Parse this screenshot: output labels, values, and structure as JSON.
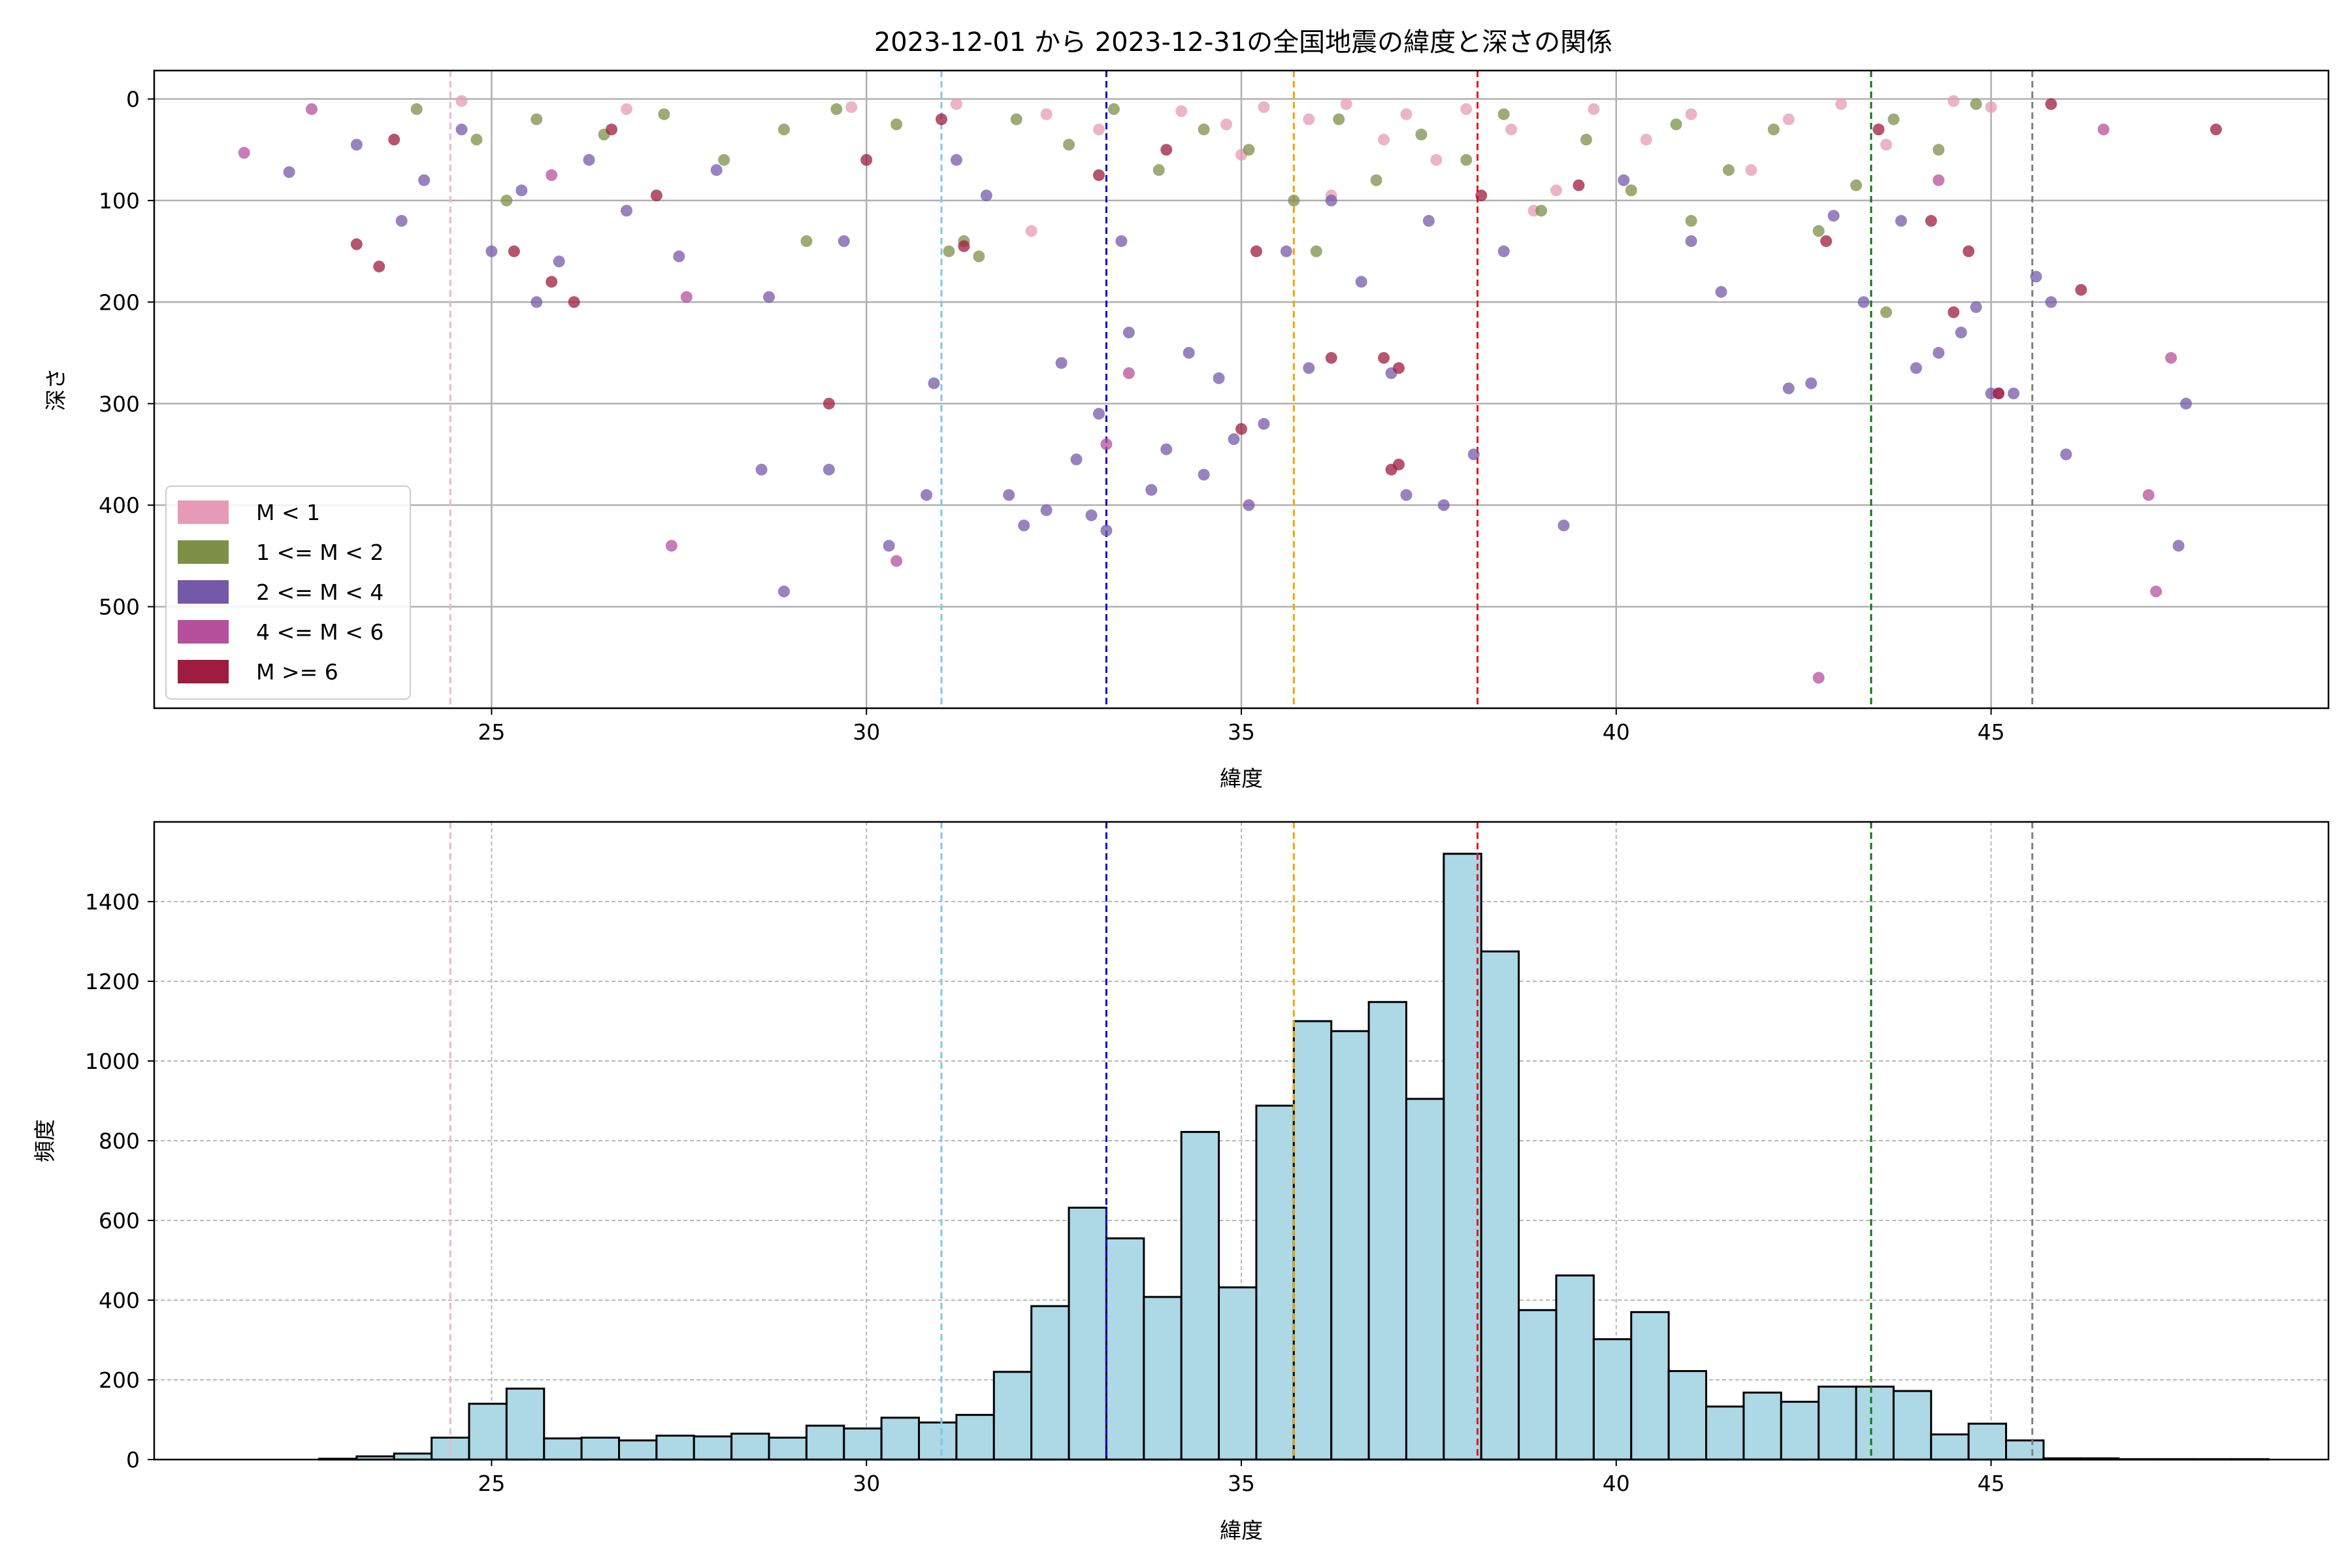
{
  "chart_data": [
    {
      "type": "scatter",
      "title": "2023-12-01 から 2023-12-31の全国地震の緯度と深さの関係",
      "xlabel": "緯度",
      "ylabel": "深さ",
      "xlim": [
        20.5,
        49.5
      ],
      "ylim": [
        600,
        -28
      ],
      "y_inverted": true,
      "xticks": [
        25,
        30,
        35,
        40,
        45
      ],
      "yticks": [
        0,
        100,
        200,
        300,
        400,
        500
      ],
      "grid": true,
      "legend_position": "lower-left",
      "series": [
        {
          "name": "M < 1",
          "color": "#e59bb7",
          "points": [
            [
              24.6,
              2
            ],
            [
              26.8,
              10
            ],
            [
              29.8,
              8
            ],
            [
              31.2,
              5
            ],
            [
              32.4,
              15
            ],
            [
              33.1,
              30
            ],
            [
              34.2,
              12
            ],
            [
              34.8,
              25
            ],
            [
              35.3,
              8
            ],
            [
              35.9,
              20
            ],
            [
              36.4,
              5
            ],
            [
              36.9,
              40
            ],
            [
              37.2,
              15
            ],
            [
              37.6,
              60
            ],
            [
              38.0,
              10
            ],
            [
              38.6,
              30
            ],
            [
              39.2,
              90
            ],
            [
              39.7,
              10
            ],
            [
              40.4,
              40
            ],
            [
              41.0,
              15
            ],
            [
              41.8,
              70
            ],
            [
              42.3,
              20
            ],
            [
              43.0,
              5
            ],
            [
              43.6,
              45
            ],
            [
              44.5,
              2
            ],
            [
              45.0,
              8
            ],
            [
              32.2,
              130
            ],
            [
              38.9,
              110
            ],
            [
              36.2,
              95
            ],
            [
              35.0,
              55
            ]
          ]
        },
        {
          "name": "1 <= M < 2",
          "color": "#7e8f48",
          "points": [
            [
              24.0,
              10
            ],
            [
              24.8,
              40
            ],
            [
              25.6,
              20
            ],
            [
              26.5,
              35
            ],
            [
              27.3,
              15
            ],
            [
              28.1,
              60
            ],
            [
              28.9,
              30
            ],
            [
              29.6,
              10
            ],
            [
              30.4,
              25
            ],
            [
              31.1,
              150
            ],
            [
              31.3,
              140
            ],
            [
              31.5,
              155
            ],
            [
              32.0,
              20
            ],
            [
              32.7,
              45
            ],
            [
              33.3,
              10
            ],
            [
              33.9,
              70
            ],
            [
              34.5,
              30
            ],
            [
              35.1,
              50
            ],
            [
              35.7,
              100
            ],
            [
              36.3,
              20
            ],
            [
              36.8,
              80
            ],
            [
              37.4,
              35
            ],
            [
              38.0,
              60
            ],
            [
              38.5,
              15
            ],
            [
              39.0,
              110
            ],
            [
              39.6,
              40
            ],
            [
              40.2,
              90
            ],
            [
              40.8,
              25
            ],
            [
              41.5,
              70
            ],
            [
              42.1,
              30
            ],
            [
              42.7,
              130
            ],
            [
              43.2,
              85
            ],
            [
              43.7,
              20
            ],
            [
              44.3,
              50
            ],
            [
              44.8,
              5
            ],
            [
              25.2,
              100
            ],
            [
              29.2,
              140
            ],
            [
              36.0,
              150
            ],
            [
              41.0,
              120
            ],
            [
              43.6,
              210
            ]
          ]
        },
        {
          "name": "2 <= M < 4",
          "color": "#7559a9",
          "points": [
            [
              22.3,
              72
            ],
            [
              23.2,
              45
            ],
            [
              23.8,
              120
            ],
            [
              24.1,
              80
            ],
            [
              24.6,
              30
            ],
            [
              25.0,
              150
            ],
            [
              25.4,
              90
            ],
            [
              25.6,
              200
            ],
            [
              25.9,
              160
            ],
            [
              26.3,
              60
            ],
            [
              26.8,
              110
            ],
            [
              27.5,
              155
            ],
            [
              28.0,
              70
            ],
            [
              28.6,
              365
            ],
            [
              28.7,
              195
            ],
            [
              28.9,
              485
            ],
            [
              29.5,
              365
            ],
            [
              29.7,
              140
            ],
            [
              30.3,
              440
            ],
            [
              30.8,
              390
            ],
            [
              30.9,
              280
            ],
            [
              31.2,
              60
            ],
            [
              31.6,
              95
            ],
            [
              31.9,
              390
            ],
            [
              32.1,
              420
            ],
            [
              32.4,
              405
            ],
            [
              32.6,
              260
            ],
            [
              32.8,
              355
            ],
            [
              33.0,
              410
            ],
            [
              33.2,
              425
            ],
            [
              33.1,
              310
            ],
            [
              33.4,
              140
            ],
            [
              33.5,
              230
            ],
            [
              33.8,
              385
            ],
            [
              34.0,
              345
            ],
            [
              34.3,
              250
            ],
            [
              34.5,
              370
            ],
            [
              34.7,
              275
            ],
            [
              34.9,
              335
            ],
            [
              35.1,
              400
            ],
            [
              35.3,
              320
            ],
            [
              35.6,
              150
            ],
            [
              35.9,
              265
            ],
            [
              36.2,
              100
            ],
            [
              36.6,
              180
            ],
            [
              37.0,
              270
            ],
            [
              37.2,
              390
            ],
            [
              37.5,
              120
            ],
            [
              37.7,
              400
            ],
            [
              38.1,
              350
            ],
            [
              38.5,
              150
            ],
            [
              39.3,
              420
            ],
            [
              40.1,
              80
            ],
            [
              41.0,
              140
            ],
            [
              41.4,
              190
            ],
            [
              42.3,
              285
            ],
            [
              42.6,
              280
            ],
            [
              42.9,
              115
            ],
            [
              43.3,
              200
            ],
            [
              43.8,
              120
            ],
            [
              44.0,
              265
            ],
            [
              44.3,
              250
            ],
            [
              44.6,
              230
            ],
            [
              44.8,
              205
            ],
            [
              45.0,
              290
            ],
            [
              45.3,
              290
            ],
            [
              45.6,
              175
            ],
            [
              45.8,
              200
            ],
            [
              46.0,
              350
            ],
            [
              47.5,
              440
            ],
            [
              47.6,
              300
            ]
          ]
        },
        {
          "name": "4 <= M < 6",
          "color": "#b6509c",
          "points": [
            [
              21.7,
              53
            ],
            [
              22.6,
              10
            ],
            [
              25.8,
              75
            ],
            [
              27.4,
              440
            ],
            [
              27.6,
              195
            ],
            [
              30.4,
              455
            ],
            [
              33.2,
              340
            ],
            [
              33.5,
              270
            ],
            [
              42.7,
              570
            ],
            [
              44.3,
              80
            ],
            [
              45.1,
              290
            ],
            [
              46.5,
              30
            ],
            [
              47.1,
              390
            ],
            [
              47.2,
              485
            ],
            [
              47.4,
              255
            ]
          ]
        },
        {
          "name": "M >= 6",
          "color": "#9d1c3f",
          "points": [
            [
              23.2,
              143
            ],
            [
              23.5,
              165
            ],
            [
              23.7,
              40
            ],
            [
              25.3,
              150
            ],
            [
              25.8,
              180
            ],
            [
              26.1,
              200
            ],
            [
              26.6,
              30
            ],
            [
              27.2,
              95
            ],
            [
              29.5,
              300
            ],
            [
              30.0,
              60
            ],
            [
              31.0,
              20
            ],
            [
              31.3,
              145
            ],
            [
              33.1,
              75
            ],
            [
              34.0,
              50
            ],
            [
              35.0,
              325
            ],
            [
              35.2,
              150
            ],
            [
              36.2,
              255
            ],
            [
              36.9,
              255
            ],
            [
              37.1,
              265
            ],
            [
              37.1,
              360
            ],
            [
              37.0,
              365
            ],
            [
              38.2,
              95
            ],
            [
              39.5,
              85
            ],
            [
              42.8,
              140
            ],
            [
              43.5,
              30
            ],
            [
              44.2,
              120
            ],
            [
              44.5,
              210
            ],
            [
              44.7,
              150
            ],
            [
              45.1,
              290
            ],
            [
              45.8,
              5
            ],
            [
              46.2,
              188
            ],
            [
              48.0,
              30
            ]
          ]
        }
      ],
      "reference_lines_x": [
        {
          "x": 24.45,
          "color": "#f2b6c6"
        },
        {
          "x": 31.0,
          "color": "#7ec8e3"
        },
        {
          "x": 33.2,
          "color": "#0000d0"
        },
        {
          "x": 35.7,
          "color": "#f5a300"
        },
        {
          "x": 38.15,
          "color": "#e01b1b"
        },
        {
          "x": 43.4,
          "color": "#0a7a0a"
        },
        {
          "x": 45.55,
          "color": "#808080"
        }
      ]
    },
    {
      "type": "bar",
      "subtype": "histogram",
      "xlabel": "緯度",
      "ylabel": "頻度",
      "xlim": [
        20.5,
        49.5
      ],
      "ylim": [
        0,
        1600
      ],
      "xticks": [
        25,
        30,
        35,
        40,
        45
      ],
      "yticks": [
        0,
        200,
        400,
        600,
        800,
        1000,
        1200,
        1400
      ],
      "grid": true,
      "bar_color": "#add8e6",
      "bin_start": 21.7,
      "bin_width": 0.5,
      "values": [
        0,
        0,
        2,
        8,
        15,
        55,
        140,
        178,
        53,
        55,
        48,
        60,
        58,
        65,
        55,
        85,
        78,
        105,
        93,
        112,
        220,
        385,
        632,
        555,
        408,
        822,
        432,
        888,
        1100,
        1075,
        1148,
        905,
        1520,
        1275,
        375,
        462,
        302,
        370,
        222,
        133,
        168,
        145,
        183,
        183,
        172,
        63,
        90,
        48,
        3,
        3,
        1,
        1,
        1,
        1,
        0
      ],
      "reference_lines_x": [
        {
          "x": 24.45,
          "color": "#f2b6c6"
        },
        {
          "x": 31.0,
          "color": "#7ec8e3"
        },
        {
          "x": 33.2,
          "color": "#0000d0"
        },
        {
          "x": 35.7,
          "color": "#f5a300"
        },
        {
          "x": 38.15,
          "color": "#e01b1b"
        },
        {
          "x": 43.4,
          "color": "#0a7a0a"
        },
        {
          "x": 45.55,
          "color": "#808080"
        }
      ]
    }
  ]
}
